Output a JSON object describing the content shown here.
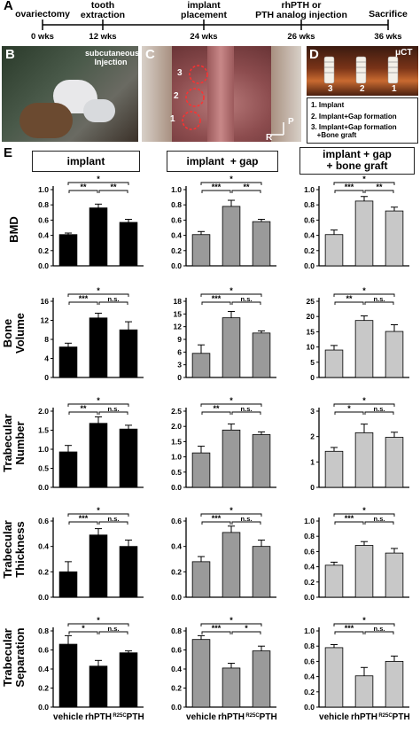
{
  "panels": {
    "a": "A",
    "b": "B",
    "c": "C",
    "d": "D",
    "e": "E"
  },
  "timeline": {
    "events": [
      {
        "label": "ovariectomy",
        "week": "0 wks"
      },
      {
        "label": "tooth\nextraction",
        "week": "12 wks"
      },
      {
        "label": "implant\nplacement",
        "week": "24 wks"
      },
      {
        "label": "rhPTH or\nPTH analog injection",
        "week": "26 wks"
      },
      {
        "label": "Sacrifice",
        "week": "36 wks"
      }
    ]
  },
  "photo_b": {
    "caption": "subcutaneous\nInjection"
  },
  "photo_c": {
    "numbers": [
      "3",
      "2",
      "1"
    ],
    "orient_p": "P",
    "orient_r": "R"
  },
  "photo_d": {
    "label": "μCT",
    "numbers": [
      "3",
      "2",
      "1"
    ]
  },
  "legend_d": [
    "1. Implant",
    "2. Implant+Gap formation",
    "3. Implant+Gap formation\n   +Bone graft"
  ],
  "columns": [
    "implant",
    "implant  + gap",
    "implant + gap\n+ bone graft"
  ],
  "rows": [
    "BMD",
    "Bone\nVolume",
    "Trabecular\nNumber",
    "Trabecular\nThickness",
    "Trabecular\nSeparation"
  ],
  "groups": [
    "vehicle",
    "rhPTH",
    "R25CPTH"
  ],
  "colors": {
    "implant": "#000000",
    "gap": "#9a9a9a",
    "graft": "#c8c8c8"
  },
  "chart_data": [
    {
      "type": "bar",
      "row": "BMD",
      "column": "implant",
      "categories": [
        "vehicle",
        "rhPTH",
        "R25CPTH"
      ],
      "values": [
        0.41,
        0.76,
        0.57
      ],
      "errors": [
        0.02,
        0.05,
        0.04
      ],
      "ylim": [
        0,
        1.0
      ],
      "ticks": [
        "0.0",
        "0.2",
        "0.4",
        "0.6",
        "0.8",
        "1.0"
      ],
      "sig": [
        [
          "*"
        ],
        [
          "**",
          "**"
        ]
      ]
    },
    {
      "type": "bar",
      "row": "BMD",
      "column": "implant + gap",
      "categories": [
        "vehicle",
        "rhPTH",
        "R25CPTH"
      ],
      "values": [
        0.41,
        0.78,
        0.58
      ],
      "errors": [
        0.04,
        0.08,
        0.03
      ],
      "ylim": [
        0,
        1.0
      ],
      "ticks": [
        "0.0",
        "0.2",
        "0.4",
        "0.6",
        "0.8",
        "1.0"
      ],
      "sig": [
        [
          "*"
        ],
        [
          "***",
          "**"
        ]
      ]
    },
    {
      "type": "bar",
      "row": "BMD",
      "column": "implant + gap + bone graft",
      "categories": [
        "vehicle",
        "rhPTH",
        "R25CPTH"
      ],
      "values": [
        0.41,
        0.85,
        0.72
      ],
      "errors": [
        0.06,
        0.06,
        0.05
      ],
      "ylim": [
        0,
        1.0
      ],
      "ticks": [
        "0.0",
        "0.2",
        "0.4",
        "0.6",
        "0.8",
        "1.0"
      ],
      "sig": [
        [
          "*"
        ],
        [
          "***",
          "**"
        ]
      ]
    },
    {
      "type": "bar",
      "row": "Bone Volume",
      "column": "implant",
      "categories": [
        "vehicle",
        "rhPTH",
        "R25CPTH"
      ],
      "values": [
        6.4,
        12.5,
        10.0
      ],
      "errors": [
        0.8,
        1.0,
        1.7
      ],
      "ylim": [
        0,
        16
      ],
      "ticks": [
        "0",
        "4",
        "8",
        "12",
        "16"
      ],
      "sig": [
        [
          "*"
        ],
        [
          "***",
          "n.s."
        ]
      ]
    },
    {
      "type": "bar",
      "row": "Bone Volume",
      "column": "implant + gap",
      "categories": [
        "vehicle",
        "rhPTH",
        "R25CPTH"
      ],
      "values": [
        5.7,
        14.1,
        10.5
      ],
      "errors": [
        2.0,
        1.5,
        0.5
      ],
      "ylim": [
        0,
        18
      ],
      "ticks": [
        "0",
        "3",
        "6",
        "9",
        "12",
        "15",
        "18"
      ],
      "sig": [
        [
          "*"
        ],
        [
          "***",
          "n.s."
        ]
      ]
    },
    {
      "type": "bar",
      "row": "Bone Volume",
      "column": "implant + gap + bone graft",
      "categories": [
        "vehicle",
        "rhPTH",
        "R25CPTH"
      ],
      "values": [
        9.0,
        18.7,
        15.1
      ],
      "errors": [
        1.5,
        1.5,
        2.2
      ],
      "ylim": [
        0,
        25
      ],
      "ticks": [
        "0",
        "5",
        "10",
        "15",
        "20",
        "25"
      ],
      "sig": [
        [
          "*"
        ],
        [
          "**",
          "n.s."
        ]
      ]
    },
    {
      "type": "bar",
      "row": "Trabecular Number",
      "column": "implant",
      "categories": [
        "vehicle",
        "rhPTH",
        "R25CPTH"
      ],
      "values": [
        0.93,
        1.68,
        1.53
      ],
      "errors": [
        0.17,
        0.17,
        0.1
      ],
      "ylim": [
        0,
        2.0
      ],
      "ticks": [
        "0.0",
        "0.5",
        "1.0",
        "1.5",
        "2.0"
      ],
      "sig": [
        [
          "*"
        ],
        [
          "**",
          "n.s."
        ]
      ]
    },
    {
      "type": "bar",
      "row": "Trabecular Number",
      "column": "implant + gap",
      "categories": [
        "vehicle",
        "rhPTH",
        "R25CPTH"
      ],
      "values": [
        1.13,
        1.88,
        1.73
      ],
      "errors": [
        0.22,
        0.2,
        0.09
      ],
      "ylim": [
        0,
        2.5
      ],
      "ticks": [
        "0.0",
        "0.5",
        "1.0",
        "1.5",
        "2.0",
        "2.5"
      ],
      "sig": [
        [
          "*"
        ],
        [
          "**",
          "n.s."
        ]
      ]
    },
    {
      "type": "bar",
      "row": "Trabecular Number",
      "column": "implant + gap + bone graft",
      "categories": [
        "vehicle",
        "rhPTH",
        "R25CPTH"
      ],
      "values": [
        1.42,
        2.15,
        1.97
      ],
      "errors": [
        0.15,
        0.34,
        0.2
      ],
      "ylim": [
        0,
        3.0
      ],
      "ticks": [
        "0",
        "1",
        "2",
        "3"
      ],
      "sig": [
        [
          "*"
        ],
        [
          "*",
          "n.s."
        ]
      ]
    },
    {
      "type": "bar",
      "row": "Trabecular Thickness",
      "column": "implant",
      "categories": [
        "vehicle",
        "rhPTH",
        "R25CPTH"
      ],
      "values": [
        0.2,
        0.49,
        0.4
      ],
      "errors": [
        0.08,
        0.05,
        0.05
      ],
      "ylim": [
        0,
        0.6
      ],
      "ticks": [
        "0.0",
        "0.2",
        "0.4",
        "0.6"
      ],
      "sig": [
        [
          "*"
        ],
        [
          "***",
          "n.s."
        ]
      ]
    },
    {
      "type": "bar",
      "row": "Trabecular Thickness",
      "column": "implant + gap",
      "categories": [
        "vehicle",
        "rhPTH",
        "R25CPTH"
      ],
      "values": [
        0.28,
        0.51,
        0.4
      ],
      "errors": [
        0.04,
        0.05,
        0.05
      ],
      "ylim": [
        0,
        0.6
      ],
      "ticks": [
        "0.0",
        "0.2",
        "0.4",
        "0.6"
      ],
      "sig": [
        [
          "*"
        ],
        [
          "***",
          "n.s."
        ]
      ]
    },
    {
      "type": "bar",
      "row": "Trabecular Thickness",
      "column": "implant + gap + bone graft",
      "categories": [
        "vehicle",
        "rhPTH",
        "R25CPTH"
      ],
      "values": [
        0.42,
        0.68,
        0.58
      ],
      "errors": [
        0.04,
        0.05,
        0.06
      ],
      "ylim": [
        0,
        1.0
      ],
      "ticks": [
        "0.0",
        "0.2",
        "0.4",
        "0.6",
        "0.8",
        "1.0"
      ],
      "sig": [
        [
          "*"
        ],
        [
          "***",
          "n.s."
        ]
      ]
    },
    {
      "type": "bar",
      "row": "Trabecular Separation",
      "column": "implant",
      "categories": [
        "vehicle",
        "rhPTH",
        "R25CPTH"
      ],
      "values": [
        0.66,
        0.43,
        0.57
      ],
      "errors": [
        0.09,
        0.06,
        0.02
      ],
      "ylim": [
        0,
        0.8
      ],
      "ticks": [
        "0.0",
        "0.2",
        "0.4",
        "0.6",
        "0.8"
      ],
      "sig": [
        [
          "*"
        ],
        [
          "*",
          "n.s."
        ]
      ]
    },
    {
      "type": "bar",
      "row": "Trabecular Separation",
      "column": "implant + gap",
      "categories": [
        "vehicle",
        "rhPTH",
        "R25CPTH"
      ],
      "values": [
        0.71,
        0.41,
        0.59
      ],
      "errors": [
        0.04,
        0.05,
        0.05
      ],
      "ylim": [
        0,
        0.8
      ],
      "ticks": [
        "0.0",
        "0.2",
        "0.4",
        "0.6",
        "0.8"
      ],
      "sig": [
        [
          "*"
        ],
        [
          "***",
          "*"
        ]
      ]
    },
    {
      "type": "bar",
      "row": "Trabecular Separation",
      "column": "implant + gap + bone graft",
      "categories": [
        "vehicle",
        "rhPTH",
        "R25CPTH"
      ],
      "values": [
        0.78,
        0.41,
        0.6
      ],
      "errors": [
        0.04,
        0.11,
        0.07
      ],
      "ylim": [
        0,
        1.0
      ],
      "ticks": [
        "0.0",
        "0.2",
        "0.4",
        "0.6",
        "0.8",
        "1.0"
      ],
      "sig": [
        [
          "*"
        ],
        [
          "***",
          "n.s."
        ]
      ]
    }
  ]
}
